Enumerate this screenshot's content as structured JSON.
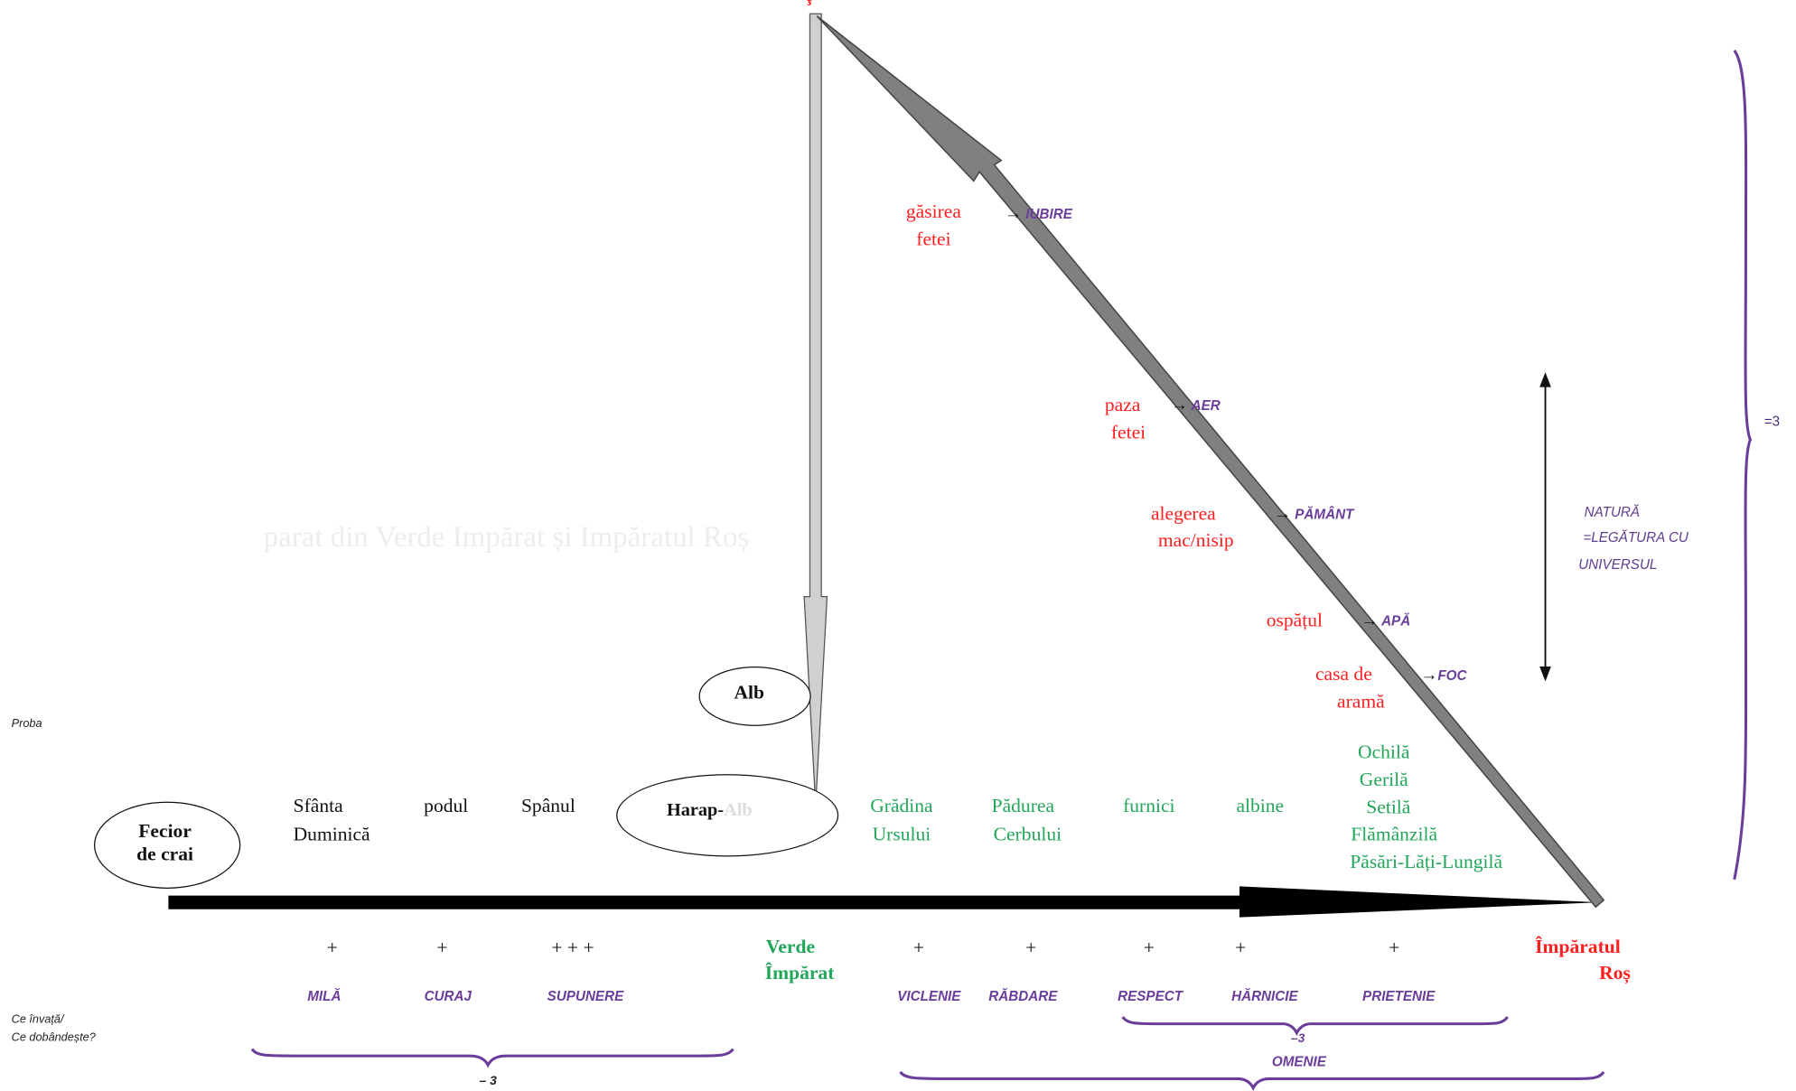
{
  "top_mark": "ţ",
  "faded_row": "parat din Verde Impărat și Impăratul Roș",
  "left_labels": {
    "probe": "Proba",
    "learns_1": "Ce învață/",
    "learns_2": "Ce dobândește?"
  },
  "start": {
    "line1": "Fecior",
    "line2": "de crai"
  },
  "alb_ellipse": "Alb",
  "harap_ellipse": {
    "part1": "Harap-",
    "part2": "Alb"
  },
  "trials_black": [
    {
      "line1": "Sfânta",
      "line2": "Duminică"
    },
    {
      "line1": "podul",
      "line2": ""
    },
    {
      "line1": "Spânul",
      "line2": ""
    }
  ],
  "trials_green": [
    {
      "line1": "Grădina",
      "line2": "Ursului"
    },
    {
      "line1": "Pădurea",
      "line2": "Cerbului"
    },
    {
      "line1": "furnici",
      "line2": ""
    },
    {
      "line1": "albine",
      "line2": ""
    }
  ],
  "companions": [
    "Ochilă",
    "Gerilă",
    "Setilă",
    "Flămânzilă",
    "Păsări-Lăți-Lungilă"
  ],
  "verde": {
    "line1": "Verde",
    "line2": "Împărat"
  },
  "rosu": {
    "line1": "Împăratul",
    "line2": "Roș"
  },
  "plus_marks": [
    "+",
    "+",
    "+ + +",
    "+",
    "+",
    "+",
    "+",
    "+"
  ],
  "virtues": [
    "MILĂ",
    "CURAJ",
    "SUPUNERE",
    "VICLENIE",
    "RĂBDARE",
    "RESPECT",
    "HĂRNICIE",
    "PRIETENIE"
  ],
  "brace_left_label": "– 3",
  "brace_right_label": "–3",
  "omenie": "OMENIE",
  "tests_red": [
    {
      "line1": "găsirea",
      "line2": "fetei",
      "element": "IUBIRE"
    },
    {
      "line1": "paza",
      "line2": "fetei",
      "element": "AER"
    },
    {
      "line1": "alegerea",
      "line2": "mac/nisip",
      "element": "PĂMÂNT"
    },
    {
      "line1": "ospățul",
      "line2": "",
      "element": "APĂ"
    },
    {
      "line1": "casa de",
      "line2": "aramă",
      "element": "FOC"
    }
  ],
  "arrow_glyph": "→",
  "nature": {
    "line1": "NATURĂ",
    "line2": "=LEGĂTURA CU",
    "line3": "UNIVERSUL"
  },
  "right_brace_label": "=3",
  "colors": {
    "red": "#ff1f1f",
    "green": "#22a65a",
    "purple": "#6a3d9a",
    "gray": "#808080"
  }
}
